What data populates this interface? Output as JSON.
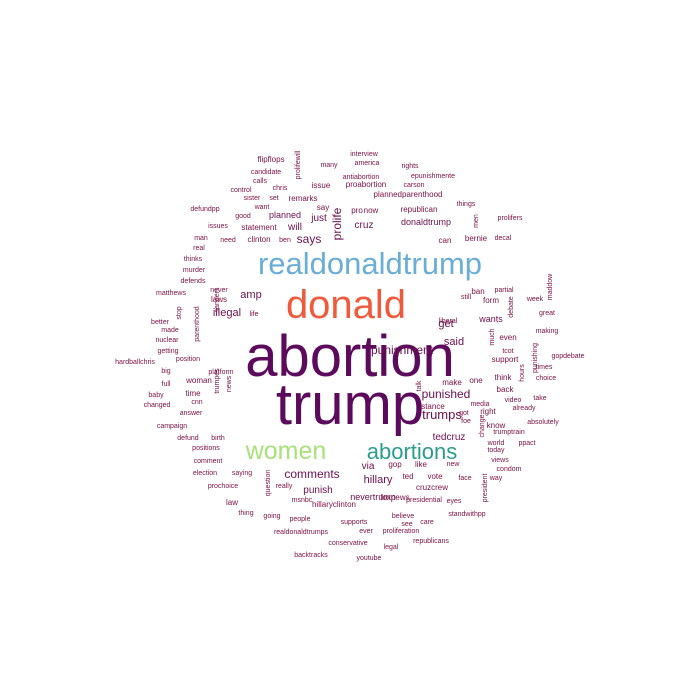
{
  "wordcloud": {
    "colors": {
      "main": "#5c0a5c",
      "donald": "#f05a3c",
      "realdonaldtrump": "#6aaed6",
      "women": "#a8e07a",
      "abortions": "#2a9d8f",
      "small": "#7a1040"
    },
    "words": [
      {
        "text": "abortion",
        "size": 58,
        "color": "#5c0a5c",
        "rot": 0
      },
      {
        "text": "trump",
        "size": 58,
        "color": "#5c0a5c",
        "rot": 0
      },
      {
        "text": "donald",
        "size": 40,
        "color": "#f05a3c",
        "rot": 0
      },
      {
        "text": "realdonaldtrump",
        "size": 31,
        "color": "#6aaed6",
        "rot": 0
      },
      {
        "text": "women",
        "size": 25,
        "color": "#a8e07a",
        "rot": 0
      },
      {
        "text": "abortions",
        "size": 22,
        "color": "#2a9d8f",
        "rot": 0
      },
      {
        "text": "trumps",
        "size": 13,
        "color": "#6b0f4f",
        "rot": 0
      },
      {
        "text": "punished",
        "size": 12,
        "color": "#6b0f4f",
        "rot": 0
      },
      {
        "text": "punishment",
        "size": 12,
        "color": "#6b0f4f",
        "rot": 0
      },
      {
        "text": "comments",
        "size": 12,
        "color": "#6b0f4f",
        "rot": 0
      },
      {
        "text": "prolife",
        "size": 12,
        "color": "#6b0f4f",
        "rot": -90
      },
      {
        "text": "says",
        "size": 12,
        "color": "#6b0f4f",
        "rot": 0
      },
      {
        "text": "get",
        "size": 11,
        "color": "#6b0f4f",
        "rot": 0
      },
      {
        "text": "said",
        "size": 11,
        "color": "#6b0f4f",
        "rot": 0
      },
      {
        "text": "amp",
        "size": 11,
        "color": "#6b0f4f",
        "rot": 0
      },
      {
        "text": "illegal",
        "size": 11,
        "color": "#6b0f4f",
        "rot": 0
      },
      {
        "text": "hillary",
        "size": 11,
        "color": "#6b0f4f",
        "rot": 0
      },
      {
        "text": "punish",
        "size": 10,
        "color": "#6b0f4f",
        "rot": 0
      },
      {
        "text": "cruz",
        "size": 10,
        "color": "#6b0f4f",
        "rot": 0
      },
      {
        "text": "will",
        "size": 10,
        "color": "#6b0f4f",
        "rot": 0
      },
      {
        "text": "just",
        "size": 10,
        "color": "#6b0f4f",
        "rot": 0
      },
      {
        "text": "via",
        "size": 10,
        "color": "#6b0f4f",
        "rot": 0
      },
      {
        "text": "tedcruz",
        "size": 10,
        "color": "#6b0f4f",
        "rot": 0
      },
      {
        "text": "wants",
        "size": 9,
        "color": "#6b0f4f",
        "rot": 0
      },
      {
        "text": "planned",
        "size": 9,
        "color": "#6b0f4f",
        "rot": 0
      },
      {
        "text": "donaldtrump",
        "size": 9,
        "color": "#6b0f4f",
        "rot": 0
      },
      {
        "text": "nevertrump",
        "size": 9,
        "color": "#6b0f4f",
        "rot": 0
      },
      {
        "text": "flipflops",
        "size": 8,
        "color": "#7a1040",
        "rot": 0
      },
      {
        "text": "candidate",
        "size": 7,
        "color": "#7a1040",
        "rot": 0
      },
      {
        "text": "calls",
        "size": 7,
        "color": "#7a1040",
        "rot": 0
      },
      {
        "text": "prolifewill",
        "size": 7,
        "color": "#7a1040",
        "rot": -90
      },
      {
        "text": "interview",
        "size": 7,
        "color": "#7a1040",
        "rot": 0
      },
      {
        "text": "america",
        "size": 7,
        "color": "#7a1040",
        "rot": 0
      },
      {
        "text": "many",
        "size": 7,
        "color": "#7a1040",
        "rot": 0
      },
      {
        "text": "rights",
        "size": 7,
        "color": "#7a1040",
        "rot": 0
      },
      {
        "text": "epunishmente",
        "size": 7,
        "color": "#7a1040",
        "rot": 0
      },
      {
        "text": "antiabortion",
        "size": 7,
        "color": "#7a1040",
        "rot": 0
      },
      {
        "text": "carson",
        "size": 7,
        "color": "#7a1040",
        "rot": 0
      },
      {
        "text": "control",
        "size": 7,
        "color": "#7a1040",
        "rot": 0
      },
      {
        "text": "chris",
        "size": 7,
        "color": "#7a1040",
        "rot": 0
      },
      {
        "text": "issue",
        "size": 8,
        "color": "#7a1040",
        "rot": 0
      },
      {
        "text": "proabortion",
        "size": 8,
        "color": "#7a1040",
        "rot": 0
      },
      {
        "text": "sister",
        "size": 7,
        "color": "#7a1040",
        "rot": 0
      },
      {
        "text": "set",
        "size": 7,
        "color": "#7a1040",
        "rot": 0
      },
      {
        "text": "remarks",
        "size": 8,
        "color": "#7a1040",
        "rot": 0
      },
      {
        "text": "say",
        "size": 8,
        "color": "#7a1040",
        "rot": 0
      },
      {
        "text": "plannedparenthood",
        "size": 8,
        "color": "#7a1040",
        "rot": 0
      },
      {
        "text": "things",
        "size": 7,
        "color": "#7a1040",
        "rot": 0
      },
      {
        "text": "defundpp",
        "size": 7,
        "color": "#7a1040",
        "rot": 0
      },
      {
        "text": "want",
        "size": 7,
        "color": "#7a1040",
        "rot": 0
      },
      {
        "text": "pro",
        "size": 8,
        "color": "#7a1040",
        "rot": 0
      },
      {
        "text": "now",
        "size": 8,
        "color": "#7a1040",
        "rot": 0
      },
      {
        "text": "republican",
        "size": 8,
        "color": "#7a1040",
        "rot": 0
      },
      {
        "text": "men",
        "size": 7,
        "color": "#7a1040",
        "rot": -90
      },
      {
        "text": "prolifers",
        "size": 7,
        "color": "#7a1040",
        "rot": 0
      },
      {
        "text": "issues",
        "size": 7,
        "color": "#7a1040",
        "rot": 0
      },
      {
        "text": "good",
        "size": 7,
        "color": "#7a1040",
        "rot": 0
      },
      {
        "text": "statement",
        "size": 8,
        "color": "#7a1040",
        "rot": 0
      },
      {
        "text": "man",
        "size": 7,
        "color": "#7a1040",
        "rot": 0
      },
      {
        "text": "need",
        "size": 7,
        "color": "#7a1040",
        "rot": 0
      },
      {
        "text": "clinton",
        "size": 8,
        "color": "#7a1040",
        "rot": 0
      },
      {
        "text": "ben",
        "size": 7,
        "color": "#7a1040",
        "rot": 0
      },
      {
        "text": "can",
        "size": 8,
        "color": "#7a1040",
        "rot": 0
      },
      {
        "text": "bernie",
        "size": 8,
        "color": "#7a1040",
        "rot": 0
      },
      {
        "text": "decal",
        "size": 7,
        "color": "#7a1040",
        "rot": 0
      },
      {
        "text": "real",
        "size": 7,
        "color": "#7a1040",
        "rot": 0
      },
      {
        "text": "thinks",
        "size": 7,
        "color": "#7a1040",
        "rot": 0
      },
      {
        "text": "murder",
        "size": 7,
        "color": "#7a1040",
        "rot": 0
      },
      {
        "text": "defends",
        "size": 7,
        "color": "#7a1040",
        "rot": 0
      },
      {
        "text": "maddow",
        "size": 7,
        "color": "#7a1040",
        "rot": -90
      },
      {
        "text": "matthews",
        "size": 7,
        "color": "#7a1040",
        "rot": 0
      },
      {
        "text": "never",
        "size": 7,
        "color": "#7a1040",
        "rot": 0
      },
      {
        "text": "laws",
        "size": 8,
        "color": "#7a1040",
        "rot": 0
      },
      {
        "text": "ban",
        "size": 8,
        "color": "#7a1040",
        "rot": 0
      },
      {
        "text": "still",
        "size": 7,
        "color": "#7a1040",
        "rot": 0
      },
      {
        "text": "partial",
        "size": 7,
        "color": "#7a1040",
        "rot": 0
      },
      {
        "text": "week",
        "size": 7,
        "color": "#7a1040",
        "rot": 0
      },
      {
        "text": "stop",
        "size": 7,
        "color": "#7a1040",
        "rot": -90
      },
      {
        "text": "sanders",
        "size": 7,
        "color": "#7a1040",
        "rot": -90
      },
      {
        "text": "form",
        "size": 8,
        "color": "#7a1040",
        "rot": 0
      },
      {
        "text": "great",
        "size": 7,
        "color": "#7a1040",
        "rot": 0
      },
      {
        "text": "better",
        "size": 7,
        "color": "#7a1040",
        "rot": 0
      },
      {
        "text": "parenthood",
        "size": 7,
        "color": "#7a1040",
        "rot": -90
      },
      {
        "text": "life",
        "size": 7,
        "color": "#7a1040",
        "rot": 0
      },
      {
        "text": "liberal",
        "size": 7,
        "color": "#7a1040",
        "rot": 0
      },
      {
        "text": "debate",
        "size": 7,
        "color": "#7a1040",
        "rot": -90
      },
      {
        "text": "made",
        "size": 7,
        "color": "#7a1040",
        "rot": 0
      },
      {
        "text": "making",
        "size": 7,
        "color": "#7a1040",
        "rot": 0
      },
      {
        "text": "nuclear",
        "size": 7,
        "color": "#7a1040",
        "rot": 0
      },
      {
        "text": "even",
        "size": 8,
        "color": "#7a1040",
        "rot": 0
      },
      {
        "text": "getting",
        "size": 7,
        "color": "#7a1040",
        "rot": 0
      },
      {
        "text": "much",
        "size": 7,
        "color": "#7a1040",
        "rot": -90
      },
      {
        "text": "punishing",
        "size": 7,
        "color": "#7a1040",
        "rot": -90
      },
      {
        "text": "tcot",
        "size": 7,
        "color": "#7a1040",
        "rot": 0
      },
      {
        "text": "hardballchris",
        "size": 7,
        "color": "#7a1040",
        "rot": 0
      },
      {
        "text": "position",
        "size": 7,
        "color": "#7a1040",
        "rot": 0
      },
      {
        "text": "support",
        "size": 8,
        "color": "#7a1040",
        "rot": 0
      },
      {
        "text": "gopdebate",
        "size": 7,
        "color": "#7a1040",
        "rot": 0
      },
      {
        "text": "big",
        "size": 7,
        "color": "#7a1040",
        "rot": 0
      },
      {
        "text": "platform",
        "size": 7,
        "color": "#7a1040",
        "rot": 0
      },
      {
        "text": "times",
        "size": 7,
        "color": "#7a1040",
        "rot": 0
      },
      {
        "text": "think",
        "size": 8,
        "color": "#7a1040",
        "rot": 0
      },
      {
        "text": "hours",
        "size": 7,
        "color": "#7a1040",
        "rot": -90
      },
      {
        "text": "choice",
        "size": 7,
        "color": "#7a1040",
        "rot": 0
      },
      {
        "text": "full",
        "size": 7,
        "color": "#7a1040",
        "rot": 0
      },
      {
        "text": "woman",
        "size": 8,
        "color": "#7a1040",
        "rot": 0
      },
      {
        "text": "make",
        "size": 8,
        "color": "#7a1040",
        "rot": 0
      },
      {
        "text": "one",
        "size": 8,
        "color": "#7a1040",
        "rot": 0
      },
      {
        "text": "back",
        "size": 8,
        "color": "#7a1040",
        "rot": 0
      },
      {
        "text": "take",
        "size": 7,
        "color": "#7a1040",
        "rot": 0
      },
      {
        "text": "baby",
        "size": 7,
        "color": "#7a1040",
        "rot": 0
      },
      {
        "text": "time",
        "size": 8,
        "color": "#7a1040",
        "rot": 0
      },
      {
        "text": "talk",
        "size": 7,
        "color": "#7a1040",
        "rot": -90
      },
      {
        "text": "video",
        "size": 7,
        "color": "#7a1040",
        "rot": 0
      },
      {
        "text": "changed",
        "size": 7,
        "color": "#7a1040",
        "rot": 0
      },
      {
        "text": "cnn",
        "size": 7,
        "color": "#7a1040",
        "rot": 0
      },
      {
        "text": "media",
        "size": 7,
        "color": "#7a1040",
        "rot": 0
      },
      {
        "text": "already",
        "size": 7,
        "color": "#7a1040",
        "rot": 0
      },
      {
        "text": "right",
        "size": 8,
        "color": "#7a1040",
        "rot": 0
      },
      {
        "text": "answer",
        "size": 7,
        "color": "#7a1040",
        "rot": 0
      },
      {
        "text": "trumpes",
        "size": 7,
        "color": "#7a1040",
        "rot": -90
      },
      {
        "text": "news",
        "size": 7,
        "color": "#7a1040",
        "rot": -90
      },
      {
        "text": "stance",
        "size": 8,
        "color": "#7a1040",
        "rot": 0
      },
      {
        "text": "got",
        "size": 7,
        "color": "#7a1040",
        "rot": 0
      },
      {
        "text": "absolutely",
        "size": 7,
        "color": "#7a1040",
        "rot": 0
      },
      {
        "text": "campaign",
        "size": 7,
        "color": "#7a1040",
        "rot": 0
      },
      {
        "text": "foe",
        "size": 7,
        "color": "#7a1040",
        "rot": 0
      },
      {
        "text": "know",
        "size": 8,
        "color": "#7a1040",
        "rot": 0
      },
      {
        "text": "trumptrain",
        "size": 7,
        "color": "#7a1040",
        "rot": 0
      },
      {
        "text": "defund",
        "size": 7,
        "color": "#7a1040",
        "rot": 0
      },
      {
        "text": "birth",
        "size": 7,
        "color": "#7a1040",
        "rot": 0
      },
      {
        "text": "change",
        "size": 7,
        "color": "#7a1040",
        "rot": -90
      },
      {
        "text": "world",
        "size": 7,
        "color": "#7a1040",
        "rot": 0
      },
      {
        "text": "ppact",
        "size": 7,
        "color": "#7a1040",
        "rot": 0
      },
      {
        "text": "positions",
        "size": 7,
        "color": "#7a1040",
        "rot": 0
      },
      {
        "text": "today",
        "size": 7,
        "color": "#7a1040",
        "rot": 0
      },
      {
        "text": "comment",
        "size": 7,
        "color": "#7a1040",
        "rot": 0
      },
      {
        "text": "views",
        "size": 7,
        "color": "#7a1040",
        "rot": 0
      },
      {
        "text": "gop",
        "size": 8,
        "color": "#7a1040",
        "rot": 0
      },
      {
        "text": "like",
        "size": 8,
        "color": "#7a1040",
        "rot": 0
      },
      {
        "text": "new",
        "size": 7,
        "color": "#7a1040",
        "rot": 0
      },
      {
        "text": "condom",
        "size": 7,
        "color": "#7a1040",
        "rot": 0
      },
      {
        "text": "election",
        "size": 7,
        "color": "#7a1040",
        "rot": 0
      },
      {
        "text": "saying",
        "size": 7,
        "color": "#7a1040",
        "rot": 0
      },
      {
        "text": "ted",
        "size": 8,
        "color": "#7a1040",
        "rot": 0
      },
      {
        "text": "vote",
        "size": 8,
        "color": "#7a1040",
        "rot": 0
      },
      {
        "text": "face",
        "size": 7,
        "color": "#7a1040",
        "rot": 0
      },
      {
        "text": "way",
        "size": 7,
        "color": "#7a1040",
        "rot": 0
      },
      {
        "text": "question",
        "size": 7,
        "color": "#7a1040",
        "rot": -90
      },
      {
        "text": "cruzcrew",
        "size": 8,
        "color": "#7a1040",
        "rot": 0
      },
      {
        "text": "prochoice",
        "size": 7,
        "color": "#7a1040",
        "rot": 0
      },
      {
        "text": "really",
        "size": 7,
        "color": "#7a1040",
        "rot": 0
      },
      {
        "text": "president",
        "size": 7,
        "color": "#7a1040",
        "rot": -90
      },
      {
        "text": "msnbc",
        "size": 7,
        "color": "#7a1040",
        "rot": 0
      },
      {
        "text": "foxnews",
        "size": 8,
        "color": "#7a1040",
        "rot": 0
      },
      {
        "text": "presidential",
        "size": 7,
        "color": "#7a1040",
        "rot": 0
      },
      {
        "text": "law",
        "size": 8,
        "color": "#7a1040",
        "rot": 0
      },
      {
        "text": "eyes",
        "size": 7,
        "color": "#7a1040",
        "rot": 0
      },
      {
        "text": "hillaryclinton",
        "size": 8,
        "color": "#7a1040",
        "rot": 0
      },
      {
        "text": "thing",
        "size": 7,
        "color": "#7a1040",
        "rot": 0
      },
      {
        "text": "going",
        "size": 7,
        "color": "#7a1040",
        "rot": 0
      },
      {
        "text": "people",
        "size": 7,
        "color": "#7a1040",
        "rot": 0
      },
      {
        "text": "standwithpp",
        "size": 7,
        "color": "#7a1040",
        "rot": 0
      },
      {
        "text": "believe",
        "size": 7,
        "color": "#7a1040",
        "rot": 0
      },
      {
        "text": "supports",
        "size": 7,
        "color": "#7a1040",
        "rot": 0
      },
      {
        "text": "see",
        "size": 7,
        "color": "#7a1040",
        "rot": 0
      },
      {
        "text": "care",
        "size": 7,
        "color": "#7a1040",
        "rot": 0
      },
      {
        "text": "realdonaldtrumps",
        "size": 7,
        "color": "#7a1040",
        "rot": 0
      },
      {
        "text": "ever",
        "size": 7,
        "color": "#7a1040",
        "rot": 0
      },
      {
        "text": "proliferation",
        "size": 7,
        "color": "#7a1040",
        "rot": 0
      },
      {
        "text": "conservative",
        "size": 7,
        "color": "#7a1040",
        "rot": 0
      },
      {
        "text": "legal",
        "size": 7,
        "color": "#7a1040",
        "rot": 0
      },
      {
        "text": "republicans",
        "size": 7,
        "color": "#7a1040",
        "rot": 0
      },
      {
        "text": "backtracks",
        "size": 7,
        "color": "#7a1040",
        "rot": 0
      },
      {
        "text": "youtube",
        "size": 7,
        "color": "#7a1040",
        "rot": 0
      }
    ]
  }
}
